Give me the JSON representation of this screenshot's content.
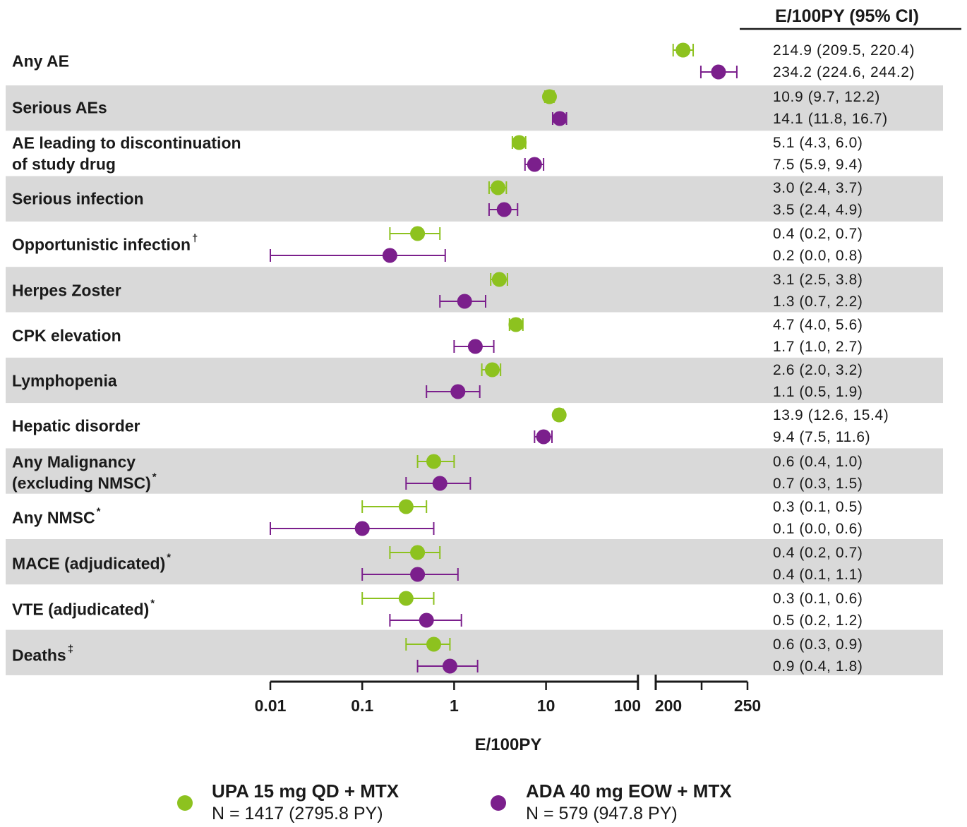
{
  "colors": {
    "upa": "#8dc21f",
    "ada": "#7b1f8c",
    "band": "#d9d9d9",
    "text": "#1a1a1a"
  },
  "header": {
    "column_title": "E/100PY (95%  CI)"
  },
  "legend": {
    "upa": {
      "name": "UPA 15 mg QD + MTX",
      "n": "N = 1417 (2795.8 PY)"
    },
    "ada": {
      "name": "ADA 40 mg EOW + MTX",
      "n": "N = 579 (947.8 PY)"
    }
  },
  "chart_data": {
    "type": "forest",
    "xlabel": "E/100PY",
    "x_scale": "log (0.01–100), broken axis, linear (200–250)",
    "ticks": [
      "0.01",
      "0.1",
      "1",
      "10",
      "100",
      "200",
      "250"
    ],
    "series_names": [
      "UPA 15 mg QD + MTX",
      "ADA 40 mg EOW + MTX"
    ],
    "value_column_title": "E/100PY (95%  CI)",
    "rows": [
      {
        "label": [
          "Any AE"
        ],
        "sup": "",
        "shaded": false,
        "upa": {
          "est": 214.9,
          "lo": 209.5,
          "hi": 220.4,
          "text": "214.9 (209.5, 220.4)"
        },
        "ada": {
          "est": 234.2,
          "lo": 224.6,
          "hi": 244.2,
          "text": "234.2 (224.6, 244.2)"
        }
      },
      {
        "label": [
          "Serious AEs"
        ],
        "sup": "",
        "shaded": true,
        "upa": {
          "est": 10.9,
          "lo": 9.7,
          "hi": 12.2,
          "text": "10.9 (9.7, 12.2)"
        },
        "ada": {
          "est": 14.1,
          "lo": 11.8,
          "hi": 16.7,
          "text": "14.1 (11.8, 16.7)"
        }
      },
      {
        "label": [
          "AE leading to discontinuation",
          "of study drug"
        ],
        "sup": "",
        "shaded": false,
        "upa": {
          "est": 5.1,
          "lo": 4.3,
          "hi": 6.0,
          "text": "5.1 (4.3, 6.0)"
        },
        "ada": {
          "est": 7.5,
          "lo": 5.9,
          "hi": 9.4,
          "text": "7.5 (5.9, 9.4)"
        }
      },
      {
        "label": [
          "Serious infection"
        ],
        "sup": "",
        "shaded": true,
        "upa": {
          "est": 3.0,
          "lo": 2.4,
          "hi": 3.7,
          "text": "3.0 (2.4, 3.7)"
        },
        "ada": {
          "est": 3.5,
          "lo": 2.4,
          "hi": 4.9,
          "text": "3.5 (2.4, 4.9)"
        }
      },
      {
        "label": [
          "Opportunistic infection"
        ],
        "sup": "†",
        "shaded": false,
        "upa": {
          "est": 0.4,
          "lo": 0.2,
          "hi": 0.7,
          "text": "0.4 (0.2, 0.7)"
        },
        "ada": {
          "est": 0.2,
          "lo": 0.0,
          "hi": 0.8,
          "text": "0.2 (0.0, 0.8)"
        }
      },
      {
        "label": [
          "Herpes Zoster"
        ],
        "sup": "",
        "shaded": true,
        "upa": {
          "est": 3.1,
          "lo": 2.5,
          "hi": 3.8,
          "text": "3.1 (2.5, 3.8)"
        },
        "ada": {
          "est": 1.3,
          "lo": 0.7,
          "hi": 2.2,
          "text": "1.3 (0.7, 2.2)"
        }
      },
      {
        "label": [
          "CPK elevation"
        ],
        "sup": "",
        "shaded": false,
        "upa": {
          "est": 4.7,
          "lo": 4.0,
          "hi": 5.6,
          "text": "4.7 (4.0, 5.6)"
        },
        "ada": {
          "est": 1.7,
          "lo": 1.0,
          "hi": 2.7,
          "text": "1.7 (1.0, 2.7)"
        }
      },
      {
        "label": [
          "Lymphopenia"
        ],
        "sup": "",
        "shaded": true,
        "upa": {
          "est": 2.6,
          "lo": 2.0,
          "hi": 3.2,
          "text": "2.6 (2.0, 3.2)"
        },
        "ada": {
          "est": 1.1,
          "lo": 0.5,
          "hi": 1.9,
          "text": "1.1 (0.5, 1.9)"
        }
      },
      {
        "label": [
          "Hepatic disorder"
        ],
        "sup": "",
        "shaded": false,
        "upa": {
          "est": 13.9,
          "lo": 12.6,
          "hi": 15.4,
          "text": "13.9 (12.6, 15.4)"
        },
        "ada": {
          "est": 9.4,
          "lo": 7.5,
          "hi": 11.6,
          "text": "9.4 (7.5, 11.6)"
        }
      },
      {
        "label": [
          "Any Malignancy",
          "(excluding NMSC)"
        ],
        "sup": "*",
        "shaded": true,
        "upa": {
          "est": 0.6,
          "lo": 0.4,
          "hi": 1.0,
          "text": "0.6 (0.4, 1.0)"
        },
        "ada": {
          "est": 0.7,
          "lo": 0.3,
          "hi": 1.5,
          "text": "0.7 (0.3, 1.5)"
        }
      },
      {
        "label": [
          "Any NMSC"
        ],
        "sup": "*",
        "shaded": false,
        "upa": {
          "est": 0.3,
          "lo": 0.1,
          "hi": 0.5,
          "text": "0.3 (0.1, 0.5)"
        },
        "ada": {
          "est": 0.1,
          "lo": 0.0,
          "hi": 0.6,
          "text": "0.1 (0.0, 0.6)"
        }
      },
      {
        "label": [
          "MACE (adjudicated)"
        ],
        "sup": "*",
        "shaded": true,
        "upa": {
          "est": 0.4,
          "lo": 0.2,
          "hi": 0.7,
          "text": "0.4 (0.2, 0.7)"
        },
        "ada": {
          "est": 0.4,
          "lo": 0.1,
          "hi": 1.1,
          "text": "0.4 (0.1, 1.1)"
        }
      },
      {
        "label": [
          "VTE (adjudicated)"
        ],
        "sup": "*",
        "shaded": false,
        "upa": {
          "est": 0.3,
          "lo": 0.1,
          "hi": 0.6,
          "text": "0.3 (0.1, 0.6)"
        },
        "ada": {
          "est": 0.5,
          "lo": 0.2,
          "hi": 1.2,
          "text": "0.5 (0.2, 1.2)"
        }
      },
      {
        "label": [
          "Deaths"
        ],
        "sup": "‡",
        "shaded": true,
        "upa": {
          "est": 0.6,
          "lo": 0.3,
          "hi": 0.9,
          "text": "0.6 (0.3, 0.9)"
        },
        "ada": {
          "est": 0.9,
          "lo": 0.4,
          "hi": 1.8,
          "text": "0.9 (0.4, 1.8)"
        }
      }
    ]
  }
}
